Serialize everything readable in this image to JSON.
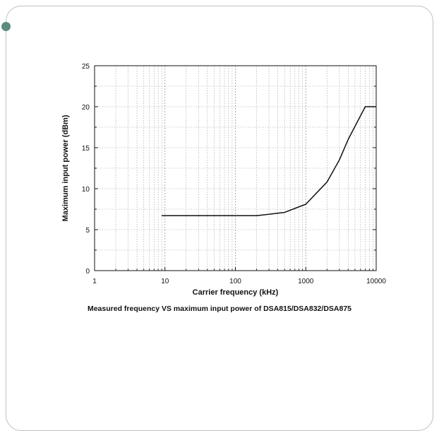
{
  "chart_data": {
    "type": "line",
    "title": "Measured frequency VS maximum input power of DSA815/DSA832/DSA875",
    "xlabel": "Carrier frequency (kHz)",
    "ylabel": "Maximum input power (dBm)",
    "x_scale": "log",
    "xlim": [
      1,
      10000
    ],
    "ylim": [
      0,
      25
    ],
    "x_ticks": [
      1,
      10,
      100,
      1000,
      10000
    ],
    "y_ticks": [
      0,
      5,
      10,
      15,
      20,
      25
    ],
    "grid": true,
    "series": [
      {
        "x": [
          9,
          200,
          500,
          1000,
          2000,
          3000,
          4000,
          7000,
          10000
        ],
        "y": [
          6.7,
          6.7,
          7.1,
          8.1,
          10.8,
          13.5,
          16.0,
          20.0,
          20.0
        ]
      }
    ]
  },
  "slide": {
    "accent_color": "#5d8b80",
    "border_color": "#b9c3c1"
  }
}
